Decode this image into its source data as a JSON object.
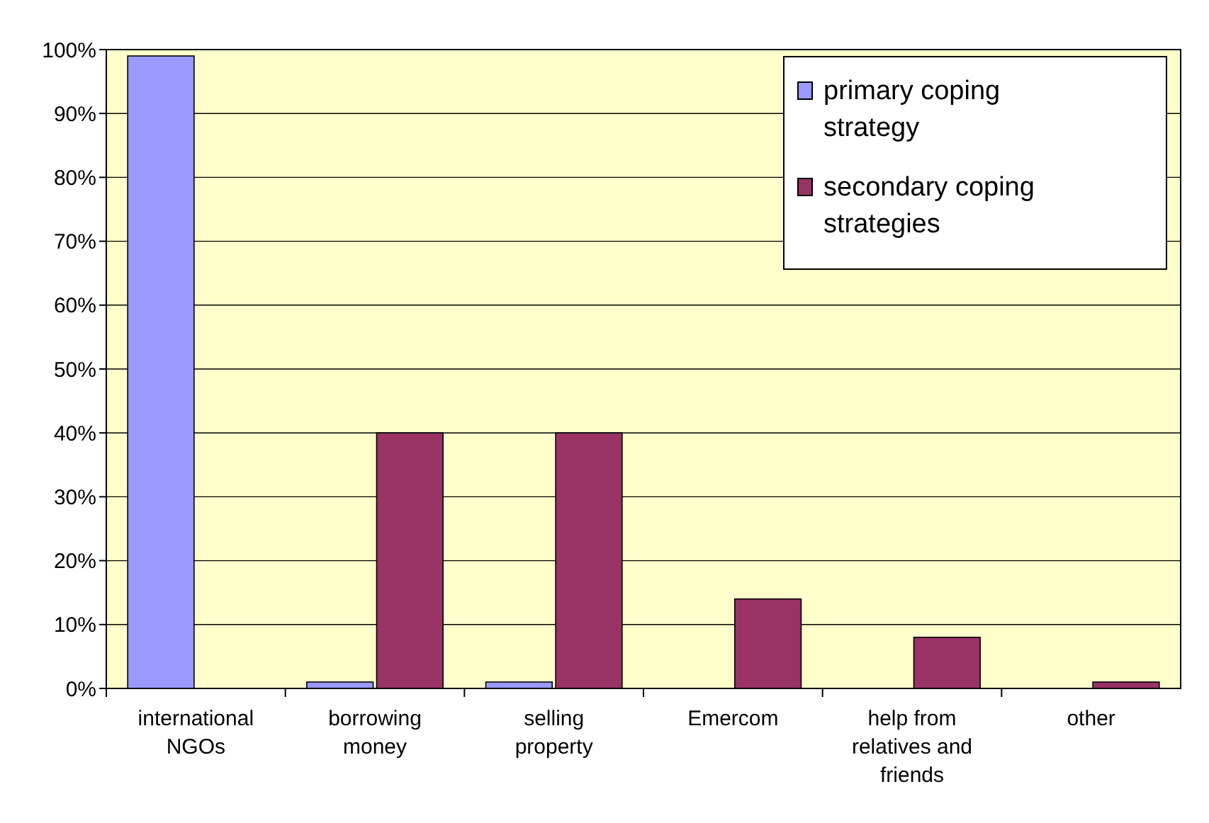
{
  "chart_data": {
    "type": "bar",
    "categories": [
      "international NGOs",
      "borrowing money",
      "selling property",
      "Emercom",
      "help from relatives and friends",
      "other"
    ],
    "series": [
      {
        "name": "primary coping strategy",
        "color": "#9999ff",
        "values": [
          99,
          1,
          1,
          0,
          0,
          0
        ]
      },
      {
        "name": "secondary coping strategies",
        "color": "#993366",
        "values": [
          0,
          40,
          40,
          14,
          8,
          1
        ]
      }
    ],
    "ylim": [
      0,
      100
    ],
    "yticks": [
      {
        "value": 0,
        "label": "0%"
      },
      {
        "value": 10,
        "label": "10%"
      },
      {
        "value": 20,
        "label": "20%"
      },
      {
        "value": 30,
        "label": "30%"
      },
      {
        "value": 40,
        "label": "40%"
      },
      {
        "value": 50,
        "label": "50%"
      },
      {
        "value": 60,
        "label": "60%"
      },
      {
        "value": 70,
        "label": "70%"
      },
      {
        "value": 80,
        "label": "80%"
      },
      {
        "value": 90,
        "label": "90%"
      },
      {
        "value": 100,
        "label": "100%"
      }
    ],
    "grid": "y",
    "legend": "top right"
  }
}
